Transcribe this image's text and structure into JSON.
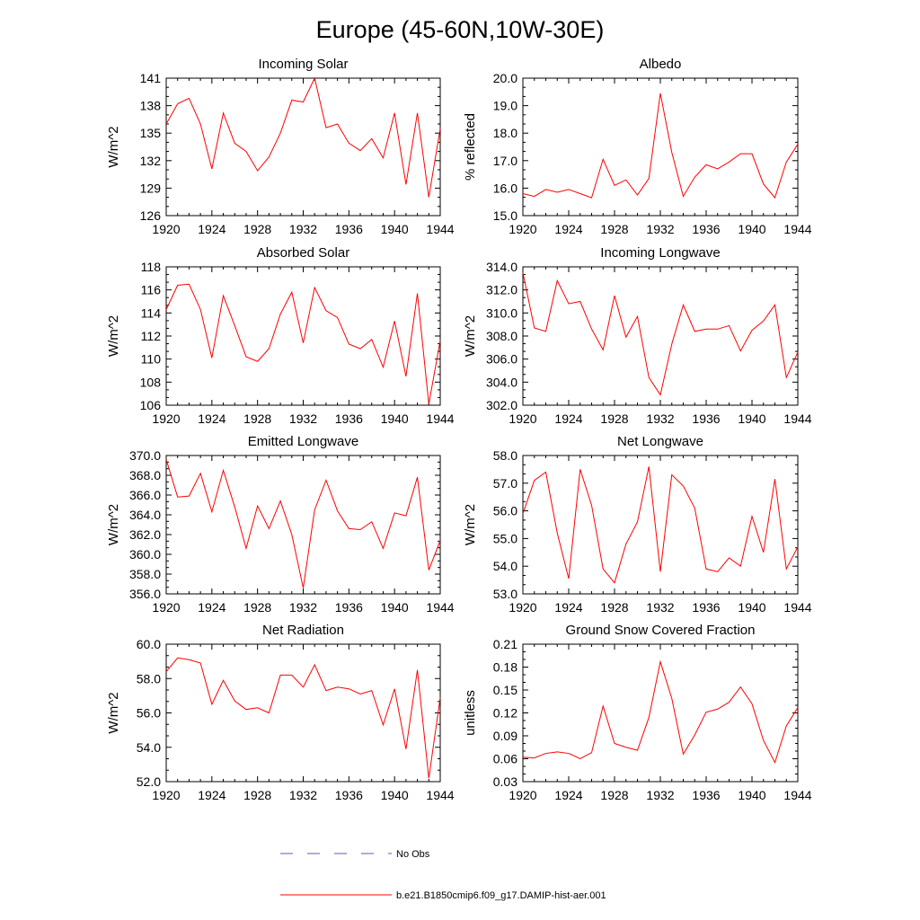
{
  "title": "Europe (45-60N,10W-30E)",
  "colors": {
    "model": "#ff0000",
    "obs": "#5b5bb8",
    "axis": "#000000"
  },
  "legend": {
    "obs_label": "No Obs",
    "model_label": "b.e21.B1850cmip6.f09_g17.DAMIP-hist-aer.001"
  },
  "chart_data": [
    {
      "type": "line",
      "title": "Incoming Solar",
      "xlabel": "",
      "ylabel": "W/m^2",
      "xlim": [
        1920,
        1944
      ],
      "ylim": [
        126,
        141
      ],
      "xticks": [
        1920,
        1924,
        1928,
        1932,
        1936,
        1940,
        1944
      ],
      "xtick_labels": [
        "1920",
        "1924",
        "1928",
        "1932",
        "1936",
        "1940",
        "1944"
      ],
      "yticks": [
        126,
        129,
        132,
        135,
        138,
        141
      ],
      "ytick_labels": [
        "126",
        "129",
        "132",
        "135",
        "138",
        "141"
      ],
      "x": [
        1920,
        1921,
        1922,
        1923,
        1924,
        1925,
        1926,
        1927,
        1928,
        1929,
        1930,
        1931,
        1932,
        1933,
        1934,
        1935,
        1936,
        1937,
        1938,
        1939,
        1940,
        1941,
        1942,
        1943,
        1944
      ],
      "series": [
        {
          "values": [
            136.0,
            138.2,
            138.8,
            136.0,
            131.1,
            137.2,
            133.9,
            133.0,
            130.9,
            132.4,
            135.0,
            138.6,
            138.4,
            141.0,
            135.6,
            136.0,
            133.9,
            133.1,
            134.4,
            132.3,
            137.2,
            129.4,
            137.2,
            128.0,
            135.5
          ]
        }
      ]
    },
    {
      "type": "line",
      "title": "Albedo",
      "xlabel": "",
      "ylabel": "% reflected",
      "xlim": [
        1920,
        1944
      ],
      "ylim": [
        15.0,
        20.0
      ],
      "xticks": [
        1920,
        1924,
        1928,
        1932,
        1936,
        1940,
        1944
      ],
      "xtick_labels": [
        "1920",
        "1924",
        "1928",
        "1932",
        "1936",
        "1940",
        "1944"
      ],
      "yticks": [
        15.0,
        16.0,
        17.0,
        18.0,
        19.0,
        20.0
      ],
      "ytick_labels": [
        "15.0",
        "16.0",
        "17.0",
        "18.0",
        "19.0",
        "20.0"
      ],
      "x": [
        1920,
        1921,
        1922,
        1923,
        1924,
        1925,
        1926,
        1927,
        1928,
        1929,
        1930,
        1931,
        1932,
        1933,
        1934,
        1935,
        1936,
        1937,
        1938,
        1939,
        1940,
        1941,
        1942,
        1943,
        1944
      ],
      "series": [
        {
          "values": [
            15.8,
            15.7,
            15.95,
            15.85,
            15.95,
            15.8,
            15.65,
            17.05,
            16.1,
            16.3,
            15.75,
            16.35,
            19.45,
            17.3,
            15.7,
            16.4,
            16.85,
            16.7,
            16.95,
            17.25,
            17.25,
            16.15,
            15.65,
            16.95,
            17.6
          ]
        }
      ]
    },
    {
      "type": "line",
      "title": "Absorbed Solar",
      "xlabel": "",
      "ylabel": "W/m^2",
      "xlim": [
        1920,
        1944
      ],
      "ylim": [
        106,
        118
      ],
      "xticks": [
        1920,
        1924,
        1928,
        1932,
        1936,
        1940,
        1944
      ],
      "xtick_labels": [
        "1920",
        "1924",
        "1928",
        "1932",
        "1936",
        "1940",
        "1944"
      ],
      "yticks": [
        106,
        108,
        110,
        112,
        114,
        116,
        118
      ],
      "ytick_labels": [
        "106",
        "108",
        "110",
        "112",
        "114",
        "116",
        "118"
      ],
      "x": [
        1920,
        1921,
        1922,
        1923,
        1924,
        1925,
        1926,
        1927,
        1928,
        1929,
        1930,
        1931,
        1932,
        1933,
        1934,
        1935,
        1936,
        1937,
        1938,
        1939,
        1940,
        1941,
        1942,
        1943,
        1944
      ],
      "series": [
        {
          "values": [
            114.3,
            116.4,
            116.5,
            114.3,
            110.1,
            115.5,
            112.9,
            110.2,
            109.8,
            110.9,
            113.9,
            115.8,
            111.4,
            116.2,
            114.2,
            113.6,
            111.3,
            110.9,
            111.7,
            109.3,
            113.3,
            108.5,
            115.7,
            106.1,
            111.6
          ]
        }
      ]
    },
    {
      "type": "line",
      "title": "Incoming Longwave",
      "xlabel": "",
      "ylabel": "W/m^2",
      "xlim": [
        1920,
        1944
      ],
      "ylim": [
        302.0,
        314.0
      ],
      "xticks": [
        1920,
        1924,
        1928,
        1932,
        1936,
        1940,
        1944
      ],
      "xtick_labels": [
        "1920",
        "1924",
        "1928",
        "1932",
        "1936",
        "1940",
        "1944"
      ],
      "yticks": [
        302.0,
        304.0,
        306.0,
        308.0,
        310.0,
        312.0,
        314.0
      ],
      "ytick_labels": [
        "302.0",
        "304.0",
        "306.0",
        "308.0",
        "310.0",
        "312.0",
        "314.0"
      ],
      "x": [
        1920,
        1921,
        1922,
        1923,
        1924,
        1925,
        1926,
        1927,
        1928,
        1929,
        1930,
        1931,
        1932,
        1933,
        1934,
        1935,
        1936,
        1937,
        1938,
        1939,
        1940,
        1941,
        1942,
        1943,
        1944
      ],
      "series": [
        {
          "values": [
            313.5,
            308.7,
            308.4,
            312.8,
            310.8,
            311.0,
            308.6,
            306.8,
            311.5,
            307.9,
            309.7,
            304.4,
            302.9,
            307.3,
            310.7,
            308.4,
            308.6,
            308.6,
            308.9,
            306.7,
            308.5,
            309.3,
            310.7,
            304.4,
            306.6
          ]
        }
      ]
    },
    {
      "type": "line",
      "title": "Emitted Longwave",
      "xlabel": "",
      "ylabel": "W/m^2",
      "xlim": [
        1920,
        1944
      ],
      "ylim": [
        356.0,
        370.0
      ],
      "xticks": [
        1920,
        1924,
        1928,
        1932,
        1936,
        1940,
        1944
      ],
      "xtick_labels": [
        "1920",
        "1924",
        "1928",
        "1932",
        "1936",
        "1940",
        "1944"
      ],
      "yticks": [
        356.0,
        358.0,
        360.0,
        362.0,
        364.0,
        366.0,
        368.0,
        370.0
      ],
      "ytick_labels": [
        "356.0",
        "358.0",
        "360.0",
        "362.0",
        "364.0",
        "366.0",
        "368.0",
        "370.0"
      ],
      "x": [
        1920,
        1921,
        1922,
        1923,
        1924,
        1925,
        1926,
        1927,
        1928,
        1929,
        1930,
        1931,
        1932,
        1933,
        1934,
        1935,
        1936,
        1937,
        1938,
        1939,
        1940,
        1941,
        1942,
        1943,
        1944
      ],
      "series": [
        {
          "values": [
            369.6,
            365.8,
            365.9,
            368.2,
            364.3,
            368.5,
            364.8,
            360.6,
            364.9,
            362.6,
            365.4,
            362.0,
            356.6,
            364.5,
            367.5,
            364.4,
            362.6,
            362.5,
            363.3,
            360.6,
            364.2,
            363.9,
            367.8,
            358.4,
            361.4
          ]
        }
      ]
    },
    {
      "type": "line",
      "title": "Net Longwave",
      "xlabel": "",
      "ylabel": "W/m^2",
      "xlim": [
        1920,
        1944
      ],
      "ylim": [
        53.0,
        58.0
      ],
      "xticks": [
        1920,
        1924,
        1928,
        1932,
        1936,
        1940,
        1944
      ],
      "xtick_labels": [
        "1920",
        "1924",
        "1928",
        "1932",
        "1936",
        "1940",
        "1944"
      ],
      "yticks": [
        53.0,
        54.0,
        55.0,
        56.0,
        57.0,
        58.0
      ],
      "ytick_labels": [
        "53.0",
        "54.0",
        "55.0",
        "56.0",
        "57.0",
        "58.0"
      ],
      "x": [
        1920,
        1921,
        1922,
        1923,
        1924,
        1925,
        1926,
        1927,
        1928,
        1929,
        1930,
        1931,
        1932,
        1933,
        1934,
        1935,
        1936,
        1937,
        1938,
        1939,
        1940,
        1941,
        1942,
        1943,
        1944
      ],
      "series": [
        {
          "values": [
            55.9,
            57.1,
            57.4,
            55.2,
            53.55,
            57.5,
            56.2,
            53.9,
            53.4,
            54.8,
            55.6,
            57.6,
            53.8,
            57.3,
            56.9,
            56.1,
            53.9,
            53.8,
            54.3,
            54.0,
            55.8,
            54.5,
            57.15,
            53.9,
            54.7
          ]
        }
      ]
    },
    {
      "type": "line",
      "title": "Net Radiation",
      "xlabel": "",
      "ylabel": "W/m^2",
      "xlim": [
        1920,
        1944
      ],
      "ylim": [
        52.0,
        60.0
      ],
      "xticks": [
        1920,
        1924,
        1928,
        1932,
        1936,
        1940,
        1944
      ],
      "xtick_labels": [
        "1920",
        "1924",
        "1928",
        "1932",
        "1936",
        "1940",
        "1944"
      ],
      "yticks": [
        52.0,
        54.0,
        56.0,
        58.0,
        60.0
      ],
      "ytick_labels": [
        "52.0",
        "54.0",
        "56.0",
        "58.0",
        "60.0"
      ],
      "x": [
        1920,
        1921,
        1922,
        1923,
        1924,
        1925,
        1926,
        1927,
        1928,
        1929,
        1930,
        1931,
        1932,
        1933,
        1934,
        1935,
        1936,
        1937,
        1938,
        1939,
        1940,
        1941,
        1942,
        1943,
        1944
      ],
      "series": [
        {
          "values": [
            58.4,
            59.2,
            59.1,
            58.9,
            56.5,
            57.9,
            56.7,
            56.2,
            56.3,
            56.0,
            58.2,
            58.2,
            57.5,
            58.8,
            57.3,
            57.5,
            57.4,
            57.1,
            57.3,
            55.3,
            57.4,
            53.9,
            58.5,
            52.2,
            56.9
          ]
        }
      ]
    },
    {
      "type": "line",
      "title": "Ground Snow Covered Fraction",
      "xlabel": "",
      "ylabel": "unitless",
      "xlim": [
        1920,
        1944
      ],
      "ylim": [
        0.03,
        0.21
      ],
      "xticks": [
        1920,
        1924,
        1928,
        1932,
        1936,
        1940,
        1944
      ],
      "xtick_labels": [
        "1920",
        "1924",
        "1928",
        "1932",
        "1936",
        "1940",
        "1944"
      ],
      "yticks": [
        0.03,
        0.06,
        0.09,
        0.12,
        0.15,
        0.18,
        0.21
      ],
      "ytick_labels": [
        "0.03",
        "0.06",
        "0.09",
        "0.12",
        "0.15",
        "0.18",
        "0.21"
      ],
      "x": [
        1920,
        1921,
        1922,
        1923,
        1924,
        1925,
        1926,
        1927,
        1928,
        1929,
        1930,
        1931,
        1932,
        1933,
        1934,
        1935,
        1936,
        1937,
        1938,
        1939,
        1940,
        1941,
        1942,
        1943,
        1944
      ],
      "series": [
        {
          "values": [
            0.062,
            0.061,
            0.067,
            0.069,
            0.067,
            0.06,
            0.068,
            0.129,
            0.08,
            0.075,
            0.071,
            0.114,
            0.187,
            0.139,
            0.066,
            0.091,
            0.121,
            0.125,
            0.134,
            0.154,
            0.132,
            0.084,
            0.055,
            0.103,
            0.127
          ]
        }
      ]
    }
  ]
}
